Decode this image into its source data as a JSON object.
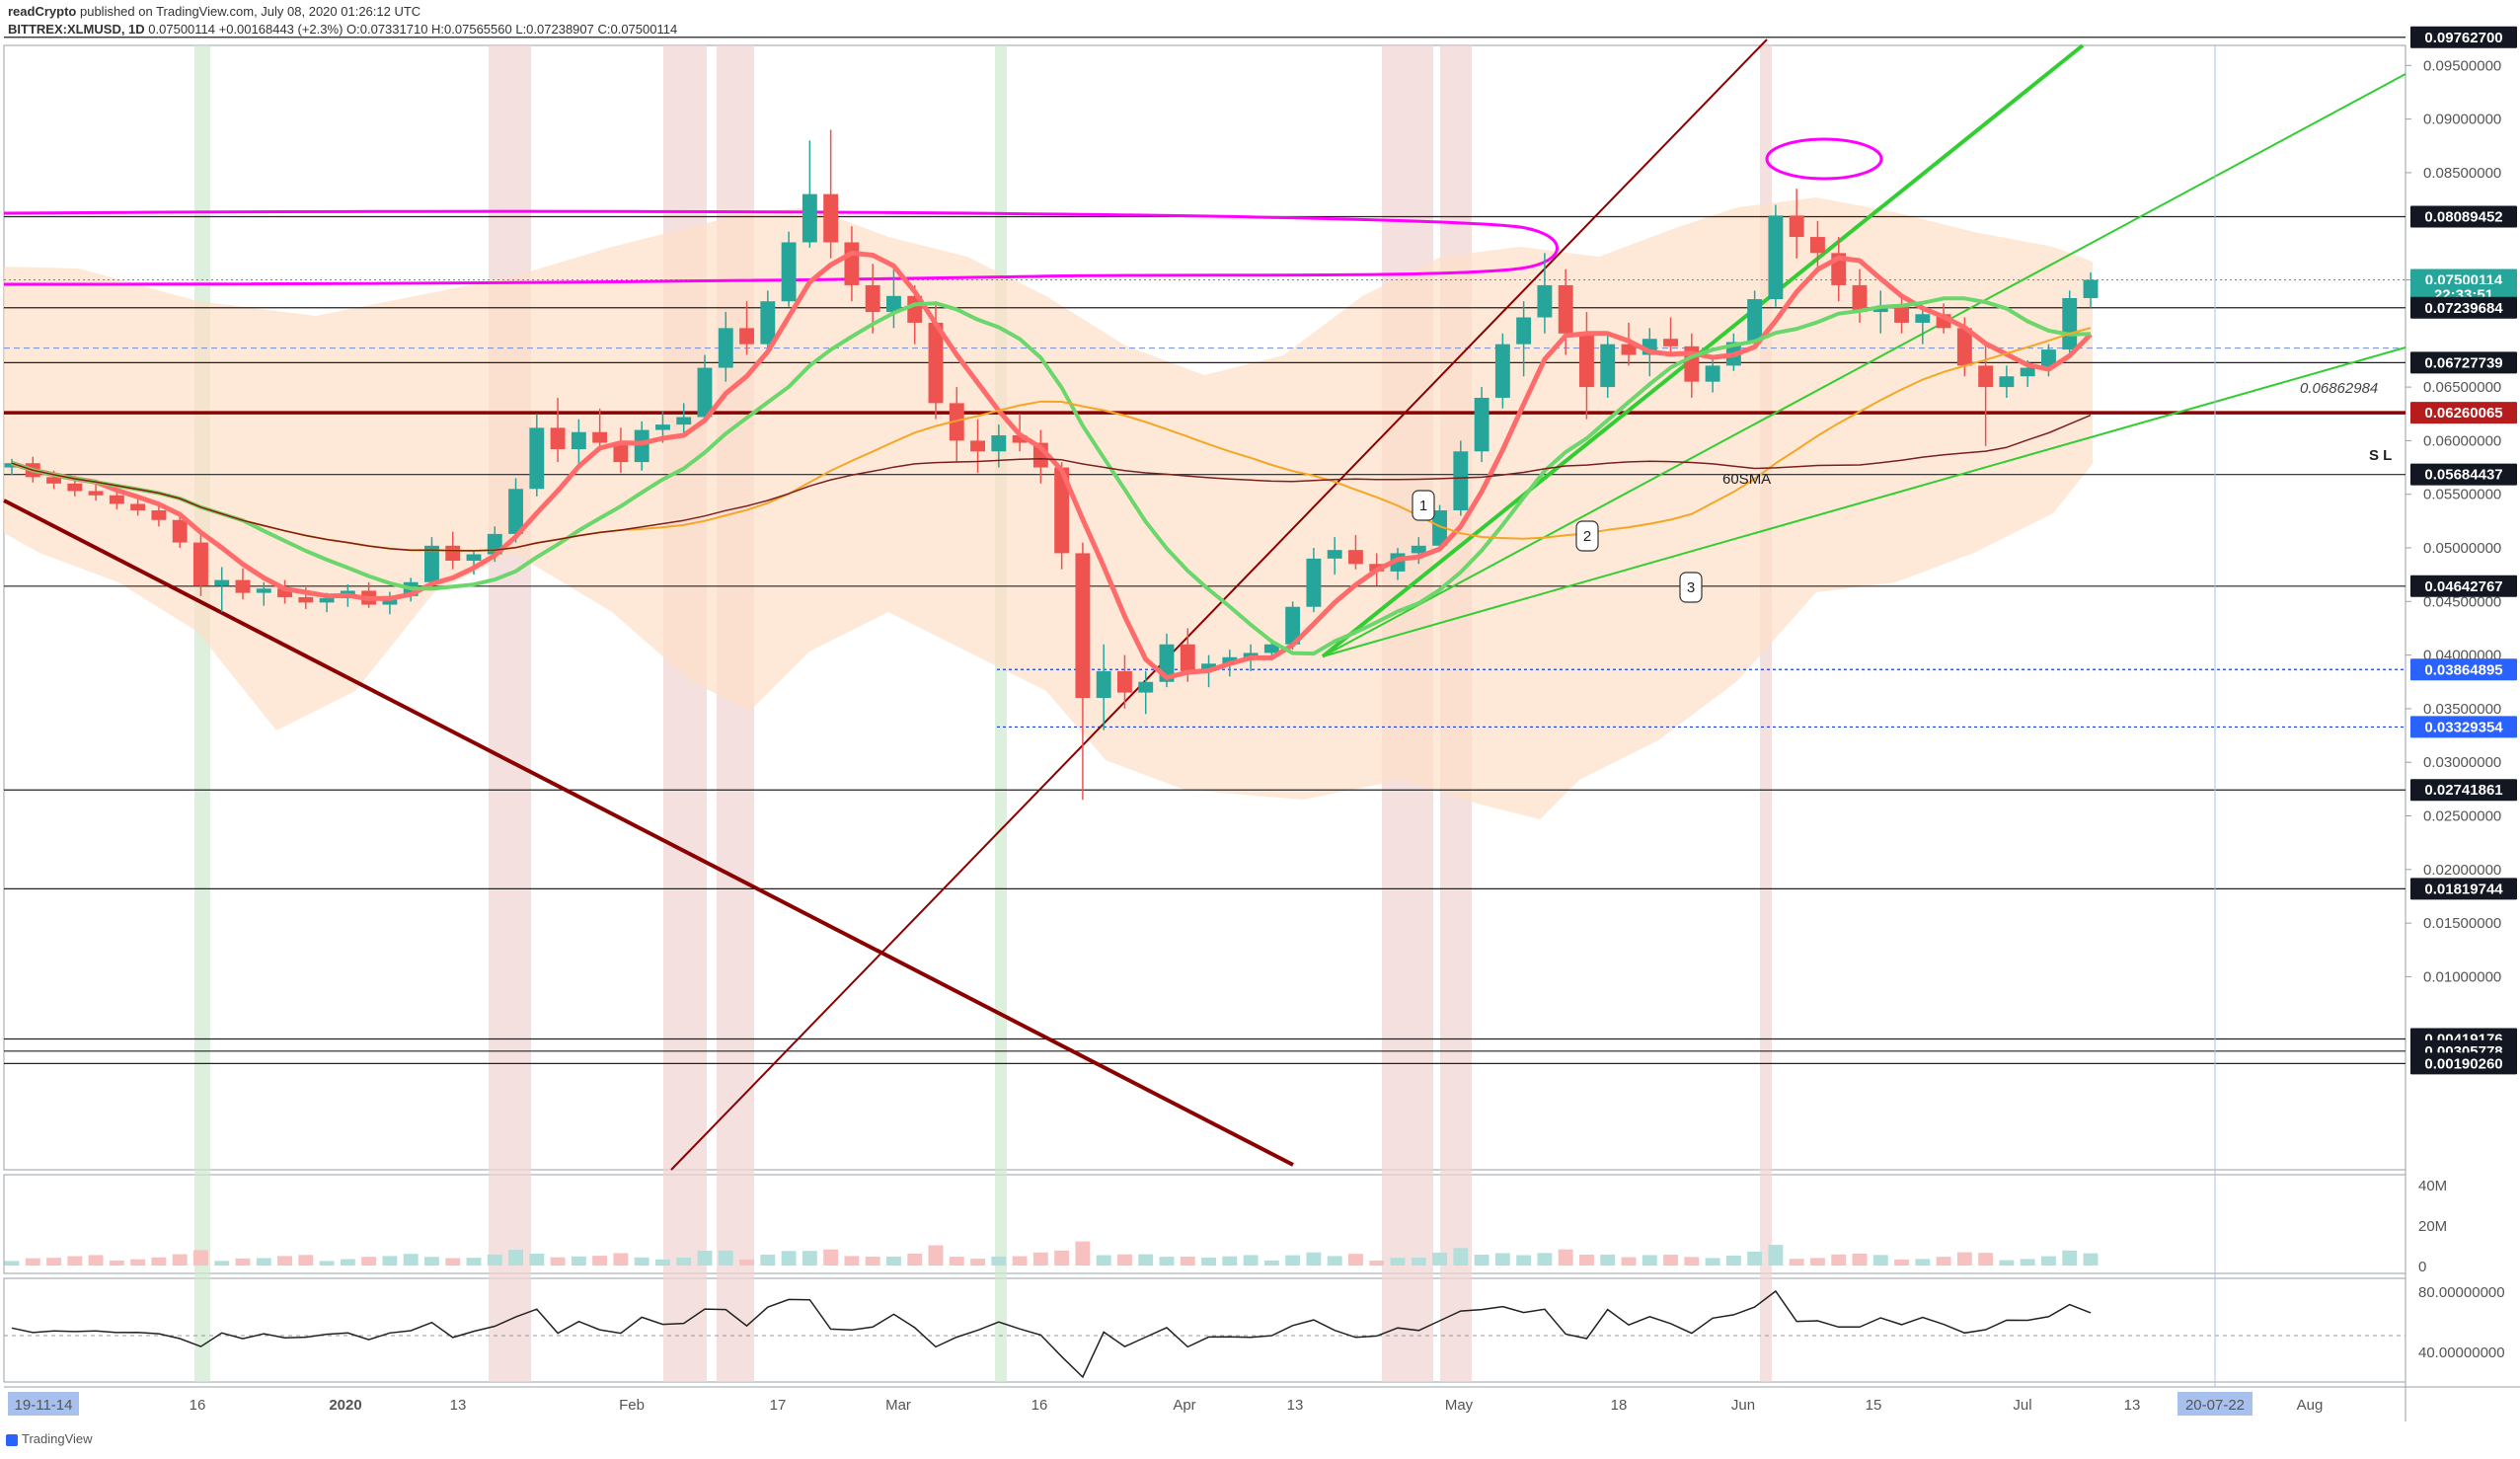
{
  "header": {
    "publisher": "readCrypto",
    "published_text": "published on TradingView.com, July 08, 2020 01:26:12 UTC",
    "symbol": "BITTREX:XLMUSD, 1D",
    "price_change": "0.07500114 +0.00168443 (+2.3%)",
    "ohlc": "O:0.07331710 H:0.07565560 L:0.07238907 C:0.07500114"
  },
  "footer": {
    "brand": "TradingView"
  },
  "colors": {
    "up": "#26a69a",
    "down": "#ef5350",
    "resistance": "#8b0000",
    "fan": "#32cd32",
    "circle": "#ff00ff",
    "ribbon": "#fde0c8"
  },
  "chart_data": {
    "type": "candlestick",
    "title": "",
    "y_axis_ticks": [
      "0.09500000",
      "0.09000000",
      "0.08500000",
      "0.07500000",
      "0.06500000",
      "0.06000000",
      "0.05500000",
      "0.05000000",
      "0.04500000",
      "0.04000000",
      "0.03500000",
      "0.03000000",
      "0.02500000",
      "0.02000000",
      "0.01500000",
      "0.01000000"
    ],
    "x_axis_ticks": [
      "16",
      "2020",
      "13",
      "Feb",
      "17",
      "Mar",
      "16",
      "Apr",
      "13",
      "May",
      "18",
      "Jun",
      "15",
      "Jul",
      "13",
      "Aug"
    ],
    "x_start_label": "19-11-14",
    "x_end_label": "20-07-22",
    "price_labels": [
      {
        "value": "0.09762700",
        "kind": "level"
      },
      {
        "value": "0.08089452",
        "kind": "level"
      },
      {
        "value": "0.07500114",
        "kind": "last"
      },
      {
        "value": "22:33:51",
        "kind": "timer"
      },
      {
        "value": "0.07239684",
        "kind": "level"
      },
      {
        "value": "0.06727739",
        "kind": "level"
      },
      {
        "value": "0.06260065",
        "kind": "sl"
      },
      {
        "value": "0.05684437",
        "kind": "level"
      },
      {
        "value": "0.04642767",
        "kind": "level"
      },
      {
        "value": "0.03864895",
        "kind": "blue"
      },
      {
        "value": "0.03329354",
        "kind": "blue"
      },
      {
        "value": "0.02741861",
        "kind": "level"
      },
      {
        "value": "0.01819744",
        "kind": "level"
      },
      {
        "value": "0.00419176",
        "kind": "level"
      },
      {
        "value": "0.00305778",
        "kind": "level"
      },
      {
        "value": "0.00190260",
        "kind": "level"
      }
    ],
    "annotations": {
      "sl": "S L",
      "sma": "60SMA",
      "dashed_value": "0.06862984",
      "callouts": [
        "1",
        "2",
        "3"
      ]
    },
    "volume_ticks": [
      "40M",
      "20M",
      "0"
    ],
    "rsi_ticks": [
      "80.00000000",
      "40.00000000"
    ],
    "candles": [
      [
        0.0575,
        0.0583,
        0.0568,
        0.0579
      ],
      [
        0.0579,
        0.0585,
        0.0561,
        0.0566
      ],
      [
        0.0566,
        0.0572,
        0.0555,
        0.056
      ],
      [
        0.056,
        0.0567,
        0.0548,
        0.0553
      ],
      [
        0.0553,
        0.056,
        0.0544,
        0.0549
      ],
      [
        0.0549,
        0.0556,
        0.0536,
        0.0541
      ],
      [
        0.0541,
        0.0549,
        0.053,
        0.0535
      ],
      [
        0.0535,
        0.0541,
        0.052,
        0.0526
      ],
      [
        0.0526,
        0.0533,
        0.05,
        0.0505
      ],
      [
        0.0505,
        0.0512,
        0.0455,
        0.0465
      ],
      [
        0.0465,
        0.0482,
        0.044,
        0.047
      ],
      [
        0.047,
        0.0481,
        0.0452,
        0.0458
      ],
      [
        0.0458,
        0.0468,
        0.0446,
        0.0462
      ],
      [
        0.0462,
        0.047,
        0.0448,
        0.0454
      ],
      [
        0.0454,
        0.0463,
        0.0443,
        0.0449
      ],
      [
        0.0449,
        0.0458,
        0.044,
        0.0453
      ],
      [
        0.0453,
        0.0466,
        0.0445,
        0.046
      ],
      [
        0.046,
        0.0468,
        0.0444,
        0.0447
      ],
      [
        0.0447,
        0.0459,
        0.0438,
        0.0455
      ],
      [
        0.0455,
        0.0472,
        0.045,
        0.0468
      ],
      [
        0.0468,
        0.051,
        0.0462,
        0.0502
      ],
      [
        0.0502,
        0.0515,
        0.048,
        0.0488
      ],
      [
        0.0488,
        0.0498,
        0.0475,
        0.0494
      ],
      [
        0.0494,
        0.052,
        0.0487,
        0.0513
      ],
      [
        0.0513,
        0.0565,
        0.0505,
        0.0555
      ],
      [
        0.0555,
        0.0625,
        0.0548,
        0.0612
      ],
      [
        0.0612,
        0.064,
        0.058,
        0.0592
      ],
      [
        0.0592,
        0.062,
        0.0575,
        0.0608
      ],
      [
        0.0608,
        0.063,
        0.059,
        0.0598
      ],
      [
        0.0598,
        0.0612,
        0.057,
        0.058
      ],
      [
        0.058,
        0.0618,
        0.0572,
        0.061
      ],
      [
        0.061,
        0.0628,
        0.0598,
        0.0615
      ],
      [
        0.0615,
        0.0635,
        0.0605,
        0.0622
      ],
      [
        0.0622,
        0.068,
        0.0618,
        0.0668
      ],
      [
        0.0668,
        0.072,
        0.0655,
        0.0705
      ],
      [
        0.0705,
        0.073,
        0.068,
        0.069
      ],
      [
        0.069,
        0.074,
        0.0685,
        0.073
      ],
      [
        0.073,
        0.0795,
        0.0725,
        0.0785
      ],
      [
        0.0785,
        0.088,
        0.078,
        0.083
      ],
      [
        0.083,
        0.089,
        0.077,
        0.0785
      ],
      [
        0.0785,
        0.08,
        0.073,
        0.0745
      ],
      [
        0.0745,
        0.0765,
        0.07,
        0.072
      ],
      [
        0.072,
        0.076,
        0.0705,
        0.0735
      ],
      [
        0.0735,
        0.0745,
        0.069,
        0.071
      ],
      [
        0.071,
        0.073,
        0.062,
        0.0635
      ],
      [
        0.0635,
        0.065,
        0.058,
        0.06
      ],
      [
        0.06,
        0.062,
        0.057,
        0.059
      ],
      [
        0.059,
        0.0615,
        0.0575,
        0.0605
      ],
      [
        0.0605,
        0.0625,
        0.059,
        0.0598
      ],
      [
        0.0598,
        0.061,
        0.056,
        0.0575
      ],
      [
        0.0575,
        0.058,
        0.048,
        0.0495
      ],
      [
        0.0495,
        0.0505,
        0.0265,
        0.036
      ],
      [
        0.036,
        0.041,
        0.033,
        0.0385
      ],
      [
        0.0385,
        0.04,
        0.035,
        0.0365
      ],
      [
        0.0365,
        0.0385,
        0.0345,
        0.0375
      ],
      [
        0.0375,
        0.042,
        0.037,
        0.041
      ],
      [
        0.041,
        0.0425,
        0.0375,
        0.0385
      ],
      [
        0.0385,
        0.04,
        0.037,
        0.0392
      ],
      [
        0.0392,
        0.0405,
        0.038,
        0.0398
      ],
      [
        0.0398,
        0.041,
        0.0385,
        0.0402
      ],
      [
        0.0402,
        0.0415,
        0.0395,
        0.041
      ],
      [
        0.041,
        0.045,
        0.0405,
        0.0445
      ],
      [
        0.0445,
        0.05,
        0.044,
        0.049
      ],
      [
        0.049,
        0.051,
        0.0475,
        0.0498
      ],
      [
        0.0498,
        0.0512,
        0.048,
        0.0485
      ],
      [
        0.0485,
        0.0495,
        0.0465,
        0.0478
      ],
      [
        0.0478,
        0.05,
        0.047,
        0.0495
      ],
      [
        0.0495,
        0.051,
        0.0485,
        0.0502
      ],
      [
        0.0502,
        0.054,
        0.0498,
        0.0535
      ],
      [
        0.0535,
        0.06,
        0.053,
        0.059
      ],
      [
        0.059,
        0.065,
        0.058,
        0.064
      ],
      [
        0.064,
        0.07,
        0.063,
        0.069
      ],
      [
        0.069,
        0.073,
        0.066,
        0.0715
      ],
      [
        0.0715,
        0.0775,
        0.07,
        0.0745
      ],
      [
        0.0745,
        0.076,
        0.068,
        0.07
      ],
      [
        0.07,
        0.072,
        0.062,
        0.065
      ],
      [
        0.065,
        0.07,
        0.064,
        0.069
      ],
      [
        0.069,
        0.071,
        0.067,
        0.068
      ],
      [
        0.068,
        0.0705,
        0.066,
        0.0695
      ],
      [
        0.0695,
        0.0715,
        0.068,
        0.0688
      ],
      [
        0.0688,
        0.07,
        0.064,
        0.0655
      ],
      [
        0.0655,
        0.068,
        0.0645,
        0.067
      ],
      [
        0.067,
        0.07,
        0.0665,
        0.0692
      ],
      [
        0.0692,
        0.074,
        0.0688,
        0.0732
      ],
      [
        0.0732,
        0.082,
        0.0725,
        0.081
      ],
      [
        0.081,
        0.0835,
        0.077,
        0.079
      ],
      [
        0.079,
        0.0805,
        0.076,
        0.0775
      ],
      [
        0.0775,
        0.079,
        0.073,
        0.0745
      ],
      [
        0.0745,
        0.076,
        0.071,
        0.072
      ],
      [
        0.072,
        0.074,
        0.07,
        0.0725
      ],
      [
        0.0725,
        0.0735,
        0.07,
        0.071
      ],
      [
        0.071,
        0.0725,
        0.069,
        0.0718
      ],
      [
        0.0718,
        0.0728,
        0.07,
        0.0705
      ],
      [
        0.0705,
        0.0715,
        0.066,
        0.067
      ],
      [
        0.067,
        0.069,
        0.0595,
        0.065
      ],
      [
        0.065,
        0.067,
        0.064,
        0.066
      ],
      [
        0.066,
        0.0675,
        0.065,
        0.0668
      ],
      [
        0.0668,
        0.069,
        0.066,
        0.0685
      ],
      [
        0.0685,
        0.074,
        0.068,
        0.0733
      ],
      [
        0.0733,
        0.0757,
        0.0724,
        0.075
      ]
    ]
  }
}
